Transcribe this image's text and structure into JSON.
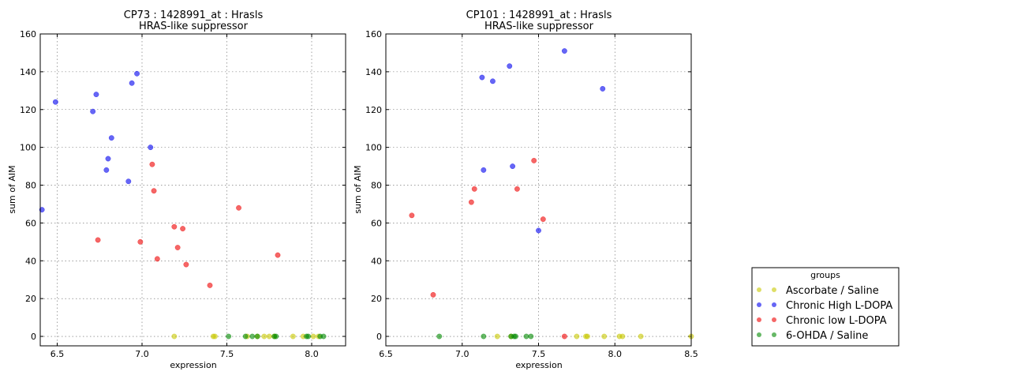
{
  "legend": {
    "title": "groups",
    "items": [
      {
        "label": "Ascorbate / Saline",
        "color": "#c8c800"
      },
      {
        "label": "Chronic High L-DOPA",
        "color": "#0000ee"
      },
      {
        "label": "Chronic low L-DOPA",
        "color": "#ee0000"
      },
      {
        "label": "6-OHDA / Saline",
        "color": "#008800"
      }
    ]
  },
  "chart_data": [
    {
      "type": "scatter",
      "title": "CP73 : 1428991_at : Hrasls",
      "subtitle": "HRAS-like suppressor",
      "xlabel": "expression",
      "ylabel": "sum of AIM",
      "xlim": [
        6.4,
        8.2
      ],
      "ylim": [
        -5,
        160
      ],
      "xticks": [
        "6.5",
        "7.0",
        "7.5",
        "8.0"
      ],
      "yticks": [
        "0",
        "20",
        "40",
        "60",
        "80",
        "100",
        "120",
        "140",
        "160"
      ],
      "grid": true,
      "series": [
        {
          "name": "Ascorbate / Saline",
          "color": "#c8c800",
          "points": [
            [
              7.19,
              0
            ],
            [
              7.42,
              0
            ],
            [
              7.43,
              0
            ],
            [
              7.62,
              0
            ],
            [
              7.68,
              0
            ],
            [
              7.72,
              0
            ],
            [
              7.75,
              0
            ],
            [
              7.78,
              0
            ],
            [
              7.89,
              0
            ],
            [
              7.95,
              0
            ],
            [
              8.01,
              0
            ],
            [
              8.04,
              0
            ]
          ]
        },
        {
          "name": "Chronic High L-DOPA",
          "color": "#0000ee",
          "points": [
            [
              6.41,
              67
            ],
            [
              6.49,
              124
            ],
            [
              6.71,
              119
            ],
            [
              6.73,
              128
            ],
            [
              6.79,
              88
            ],
            [
              6.8,
              94
            ],
            [
              6.82,
              105
            ],
            [
              6.92,
              82
            ],
            [
              6.94,
              134
            ],
            [
              6.97,
              139
            ],
            [
              7.05,
              100
            ]
          ]
        },
        {
          "name": "Chronic low L-DOPA",
          "color": "#ee0000",
          "points": [
            [
              6.74,
              51
            ],
            [
              6.99,
              50
            ],
            [
              7.06,
              91
            ],
            [
              7.07,
              77
            ],
            [
              7.09,
              41
            ],
            [
              7.19,
              58
            ],
            [
              7.21,
              47
            ],
            [
              7.24,
              57
            ],
            [
              7.26,
              38
            ],
            [
              7.4,
              27
            ],
            [
              7.57,
              68
            ],
            [
              7.8,
              43
            ]
          ]
        },
        {
          "name": "6-OHDA / Saline",
          "color": "#008800",
          "points": [
            [
              7.51,
              0
            ],
            [
              7.61,
              0
            ],
            [
              7.65,
              0
            ],
            [
              7.68,
              0
            ],
            [
              7.78,
              0
            ],
            [
              7.79,
              0
            ],
            [
              7.97,
              0
            ],
            [
              7.98,
              0
            ],
            [
              8.05,
              0
            ],
            [
              8.07,
              0
            ]
          ]
        }
      ]
    },
    {
      "type": "scatter",
      "title": "CP101 : 1428991_at : Hrasls",
      "subtitle": "HRAS-like suppressor",
      "xlabel": "expression",
      "ylabel": "sum of AIM",
      "xlim": [
        6.5,
        8.5
      ],
      "ylim": [
        -5,
        160
      ],
      "xticks": [
        "6.5",
        "7.0",
        "7.5",
        "8.0",
        "8.5"
      ],
      "yticks": [
        "0",
        "20",
        "40",
        "60",
        "80",
        "100",
        "120",
        "140",
        "160"
      ],
      "grid": true,
      "series": [
        {
          "name": "Ascorbate / Saline",
          "color": "#c8c800",
          "points": [
            [
              7.23,
              0
            ],
            [
              7.32,
              0
            ],
            [
              7.75,
              0
            ],
            [
              7.81,
              0
            ],
            [
              7.82,
              0
            ],
            [
              7.93,
              0
            ],
            [
              8.03,
              0
            ],
            [
              8.05,
              0
            ],
            [
              8.17,
              0
            ],
            [
              8.5,
              0
            ]
          ]
        },
        {
          "name": "Chronic High L-DOPA",
          "color": "#0000ee",
          "points": [
            [
              7.13,
              137
            ],
            [
              7.14,
              88
            ],
            [
              7.2,
              135
            ],
            [
              7.31,
              143
            ],
            [
              7.33,
              90
            ],
            [
              7.5,
              56
            ],
            [
              7.67,
              151
            ],
            [
              7.92,
              131
            ]
          ]
        },
        {
          "name": "Chronic low L-DOPA",
          "color": "#ee0000",
          "points": [
            [
              6.67,
              64
            ],
            [
              6.81,
              22
            ],
            [
              7.06,
              71
            ],
            [
              7.08,
              78
            ],
            [
              7.36,
              78
            ],
            [
              7.47,
              93
            ],
            [
              7.53,
              62
            ],
            [
              7.67,
              0
            ]
          ]
        },
        {
          "name": "6-OHDA / Saline",
          "color": "#008800",
          "points": [
            [
              6.85,
              0
            ],
            [
              7.14,
              0
            ],
            [
              7.32,
              0
            ],
            [
              7.34,
              0
            ],
            [
              7.35,
              0
            ],
            [
              7.42,
              0
            ],
            [
              7.45,
              0
            ]
          ]
        }
      ]
    }
  ]
}
